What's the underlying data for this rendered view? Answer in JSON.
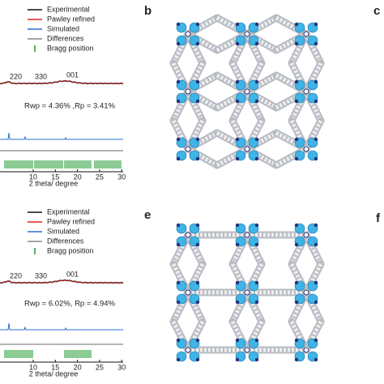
{
  "panels": [
    {
      "legend": [
        "Experimental",
        "Pawley refined",
        "Simulated",
        "Differences",
        "Bragg position"
      ],
      "peaks": [
        "220",
        "330",
        "001"
      ],
      "fit": "Rwp = 4.36% ,Rp = 3.41%",
      "xticks": [
        "10",
        "15",
        "20",
        "25",
        "30"
      ],
      "xlabel": "2 theta/ degree"
    },
    {
      "legend": [
        "Experimental",
        "Pawley refined",
        "Simulated",
        "Differences",
        "Bragg position"
      ],
      "peaks": [
        "220",
        "330",
        "001"
      ],
      "fit": "Rwp = 6.02%, Rp = 4.94%",
      "xticks": [
        "10",
        "15",
        "20",
        "25",
        "30"
      ],
      "xlabel": "2 theta/ degree"
    }
  ],
  "letters": [
    "b",
    "c",
    "e",
    "f"
  ]
}
